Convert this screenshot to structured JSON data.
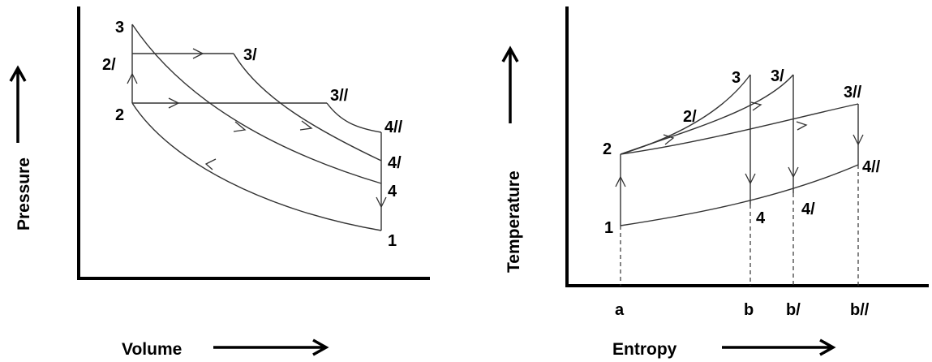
{
  "pv_diagram": {
    "y_axis_label": "Pressure",
    "x_axis_label": "Volume",
    "points": {
      "p1": "1",
      "p2": "2",
      "p2p": "2/",
      "p3": "3",
      "p3p": "3/",
      "p3pp": "3//",
      "p4": "4",
      "p4p": "4/",
      "p4pp": "4//"
    }
  },
  "ts_diagram": {
    "y_axis_label": "Temperature",
    "x_axis_label": "Entropy",
    "points": {
      "p1": "1",
      "p2": "2",
      "p2p": "2/",
      "p3": "3",
      "p3p": "3/",
      "p3pp": "3//",
      "p4": "4",
      "p4p": "4/",
      "p4pp": "4//"
    },
    "ticks": {
      "a": "a",
      "b": "b",
      "bp": "b/",
      "bpp": "b//"
    }
  }
}
